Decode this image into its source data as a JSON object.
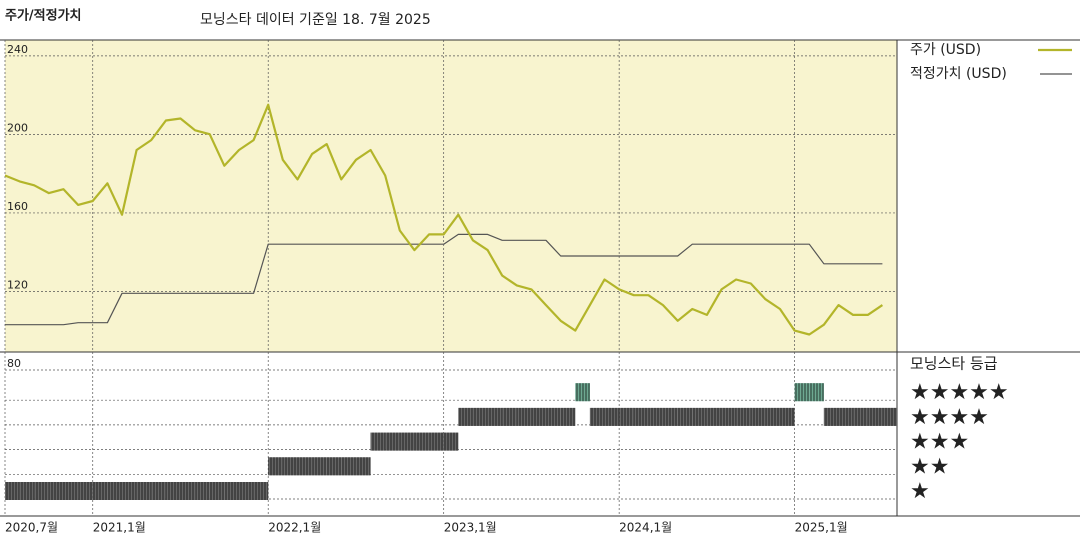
{
  "chart_data": {
    "type": "line",
    "title": "주가/적정가치",
    "subtitle": "모닝스타 데이터 기준일 18. 7월 2025",
    "x": [
      "2020-07",
      "2020-08",
      "2020-09",
      "2020-10",
      "2020-11",
      "2020-12",
      "2021-01",
      "2021-02",
      "2021-03",
      "2021-04",
      "2021-05",
      "2021-06",
      "2021-07",
      "2021-08",
      "2021-09",
      "2021-10",
      "2021-11",
      "2021-12",
      "2022-01",
      "2022-02",
      "2022-03",
      "2022-04",
      "2022-05",
      "2022-06",
      "2022-07",
      "2022-08",
      "2022-09",
      "2022-10",
      "2022-11",
      "2022-12",
      "2023-01",
      "2023-02",
      "2023-03",
      "2023-04",
      "2023-05",
      "2023-06",
      "2023-07",
      "2023-08",
      "2023-09",
      "2023-10",
      "2023-11",
      "2023-12",
      "2024-01",
      "2024-02",
      "2024-03",
      "2024-04",
      "2024-05",
      "2024-06",
      "2024-07",
      "2024-08",
      "2024-09",
      "2024-10",
      "2024-11",
      "2024-12",
      "2025-01",
      "2025-02",
      "2025-03",
      "2025-04",
      "2025-05",
      "2025-06",
      "2025-07"
    ],
    "xlim": [
      "2020-07",
      "2025-08"
    ],
    "xticks": [
      {
        "value": "2020-07",
        "label": "2020,7월"
      },
      {
        "value": "2021-01",
        "label": "2021,1월"
      },
      {
        "value": "2022-01",
        "label": "2022,1월"
      },
      {
        "value": "2023-01",
        "label": "2023,1월"
      },
      {
        "value": "2024-01",
        "label": "2024,1월"
      },
      {
        "value": "2025-01",
        "label": "2025,1월"
      }
    ],
    "ylim": [
      80,
      244
    ],
    "yticks": [
      80,
      120,
      160,
      200,
      240
    ],
    "grid": true,
    "series": [
      {
        "name": "주가 (USD)",
        "color": "#b3b52a",
        "width": 2.2,
        "values": [
          175,
          172,
          170,
          166,
          168,
          160,
          162,
          171,
          155,
          188,
          193,
          203,
          204,
          198,
          196,
          180,
          188,
          193,
          211,
          183,
          173,
          186,
          191,
          173,
          183,
          188,
          175,
          147,
          137,
          145,
          145,
          155,
          142,
          137,
          124,
          119,
          117,
          109,
          101,
          96,
          109,
          122,
          117,
          114,
          114,
          109,
          101,
          107,
          104,
          117,
          122,
          120,
          112,
          107,
          96,
          94,
          99,
          109,
          104,
          104,
          109
        ]
      },
      {
        "name": "적정가치 (USD)",
        "color": "#555555",
        "width": 1.2,
        "values": [
          99,
          99,
          99,
          99,
          99,
          100,
          100,
          100,
          115,
          115,
          115,
          115,
          115,
          115,
          115,
          115,
          115,
          115,
          140,
          140,
          140,
          140,
          140,
          140,
          140,
          140,
          140,
          140,
          140,
          140,
          140,
          145,
          145,
          145,
          142,
          142,
          142,
          142,
          134,
          134,
          134,
          134,
          134,
          134,
          134,
          134,
          134,
          140,
          140,
          140,
          140,
          140,
          140,
          140,
          140,
          140,
          130,
          130,
          130,
          130,
          130
        ]
      }
    ],
    "ratings": {
      "name": "모닝스타 등급",
      "levels": [
        "★",
        "★★",
        "★★★",
        "★★★★",
        "★★★★★"
      ],
      "colors": [
        "#333333",
        "#333333",
        "#333333",
        "#333333",
        "#3d8c6e"
      ],
      "values": [
        1,
        1,
        1,
        1,
        1,
        1,
        1,
        1,
        1,
        1,
        1,
        1,
        1,
        1,
        1,
        1,
        1,
        1,
        2,
        2,
        2,
        2,
        2,
        2,
        2,
        3,
        3,
        3,
        3,
        3,
        3,
        4,
        4,
        4,
        4,
        4,
        4,
        4,
        4,
        5,
        4,
        4,
        4,
        4,
        4,
        4,
        4,
        4,
        4,
        4,
        4,
        4,
        4,
        4,
        5,
        5,
        4,
        4,
        4,
        4,
        4
      ]
    }
  }
}
